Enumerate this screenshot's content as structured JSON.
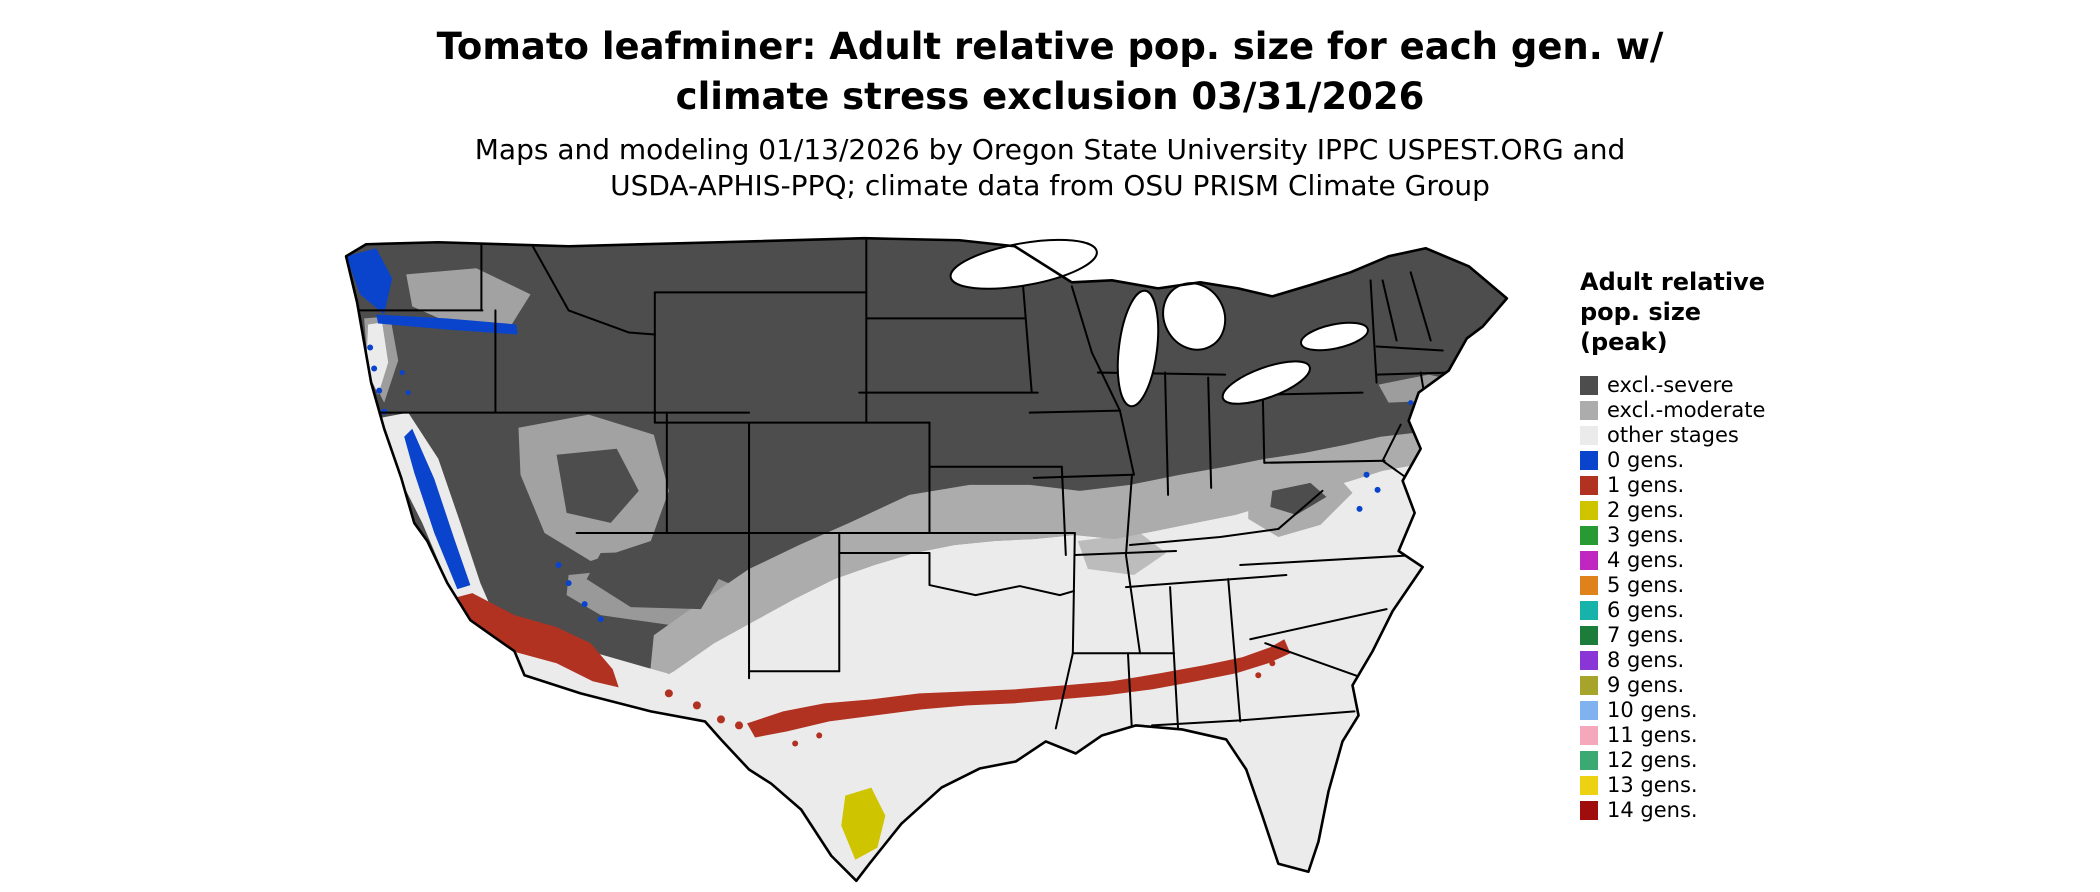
{
  "header": {
    "title_lines": [
      "Tomato leafminer: Adult relative pop. size for each gen. w/",
      "climate stress exclusion 03/31/2026"
    ],
    "subtitle_lines": [
      "Maps and modeling 01/13/2026 by Oregon State University IPPC USPEST.ORG and",
      "USDA-APHIS-PPQ; climate data from OSU PRISM Climate Group"
    ]
  },
  "legend": {
    "title_lines": [
      "Adult relative",
      "pop. size",
      "(peak)"
    ],
    "items": [
      {
        "label": "excl.-severe",
        "color": "#4d4d4d"
      },
      {
        "label": "excl.-moderate",
        "color": "#acacac"
      },
      {
        "label": "other stages",
        "color": "#ebebeb"
      },
      {
        "label": "0 gens.",
        "color": "#0a44cc"
      },
      {
        "label": "1 gens.",
        "color": "#b23222"
      },
      {
        "label": "2 gens.",
        "color": "#cfc400"
      },
      {
        "label": "3 gens.",
        "color": "#279a33"
      },
      {
        "label": "4 gens.",
        "color": "#c026c0"
      },
      {
        "label": "5 gens.",
        "color": "#e0821c"
      },
      {
        "label": "6 gens.",
        "color": "#17b2aa"
      },
      {
        "label": "7 gens.",
        "color": "#1c7d3a"
      },
      {
        "label": "8 gens.",
        "color": "#8a35d6"
      },
      {
        "label": "9 gens.",
        "color": "#a6a42b"
      },
      {
        "label": "10 gens.",
        "color": "#7fb2ef"
      },
      {
        "label": "11 gens.",
        "color": "#f5a8bc"
      },
      {
        "label": "12 gens.",
        "color": "#3aaa72"
      },
      {
        "label": "13 gens.",
        "color": "#ecd213"
      },
      {
        "label": "14 gens.",
        "color": "#a00d0d"
      }
    ]
  },
  "map": {
    "background": "#ffffff",
    "water_color": "#ffffff",
    "border_color": "#000000",
    "regions": [
      {
        "value": "excl.-severe",
        "area": "northern US and mountain west"
      },
      {
        "value": "excl.-moderate",
        "area": "transition band through central US, Appalachians and mid-Atlantic"
      },
      {
        "value": "other stages",
        "area": "southern states, Texas, Florida, California valleys and coastal plain"
      },
      {
        "value": "0 gens.",
        "area": "Pacific Northwest, Cascades and Sierra Nevada"
      },
      {
        "value": "1 gens.",
        "area": "southern Arizona/California and a band across the Gulf states to South Carolina"
      },
      {
        "value": "2 gens.",
        "area": "southern tip of Texas and central Florida"
      }
    ]
  }
}
